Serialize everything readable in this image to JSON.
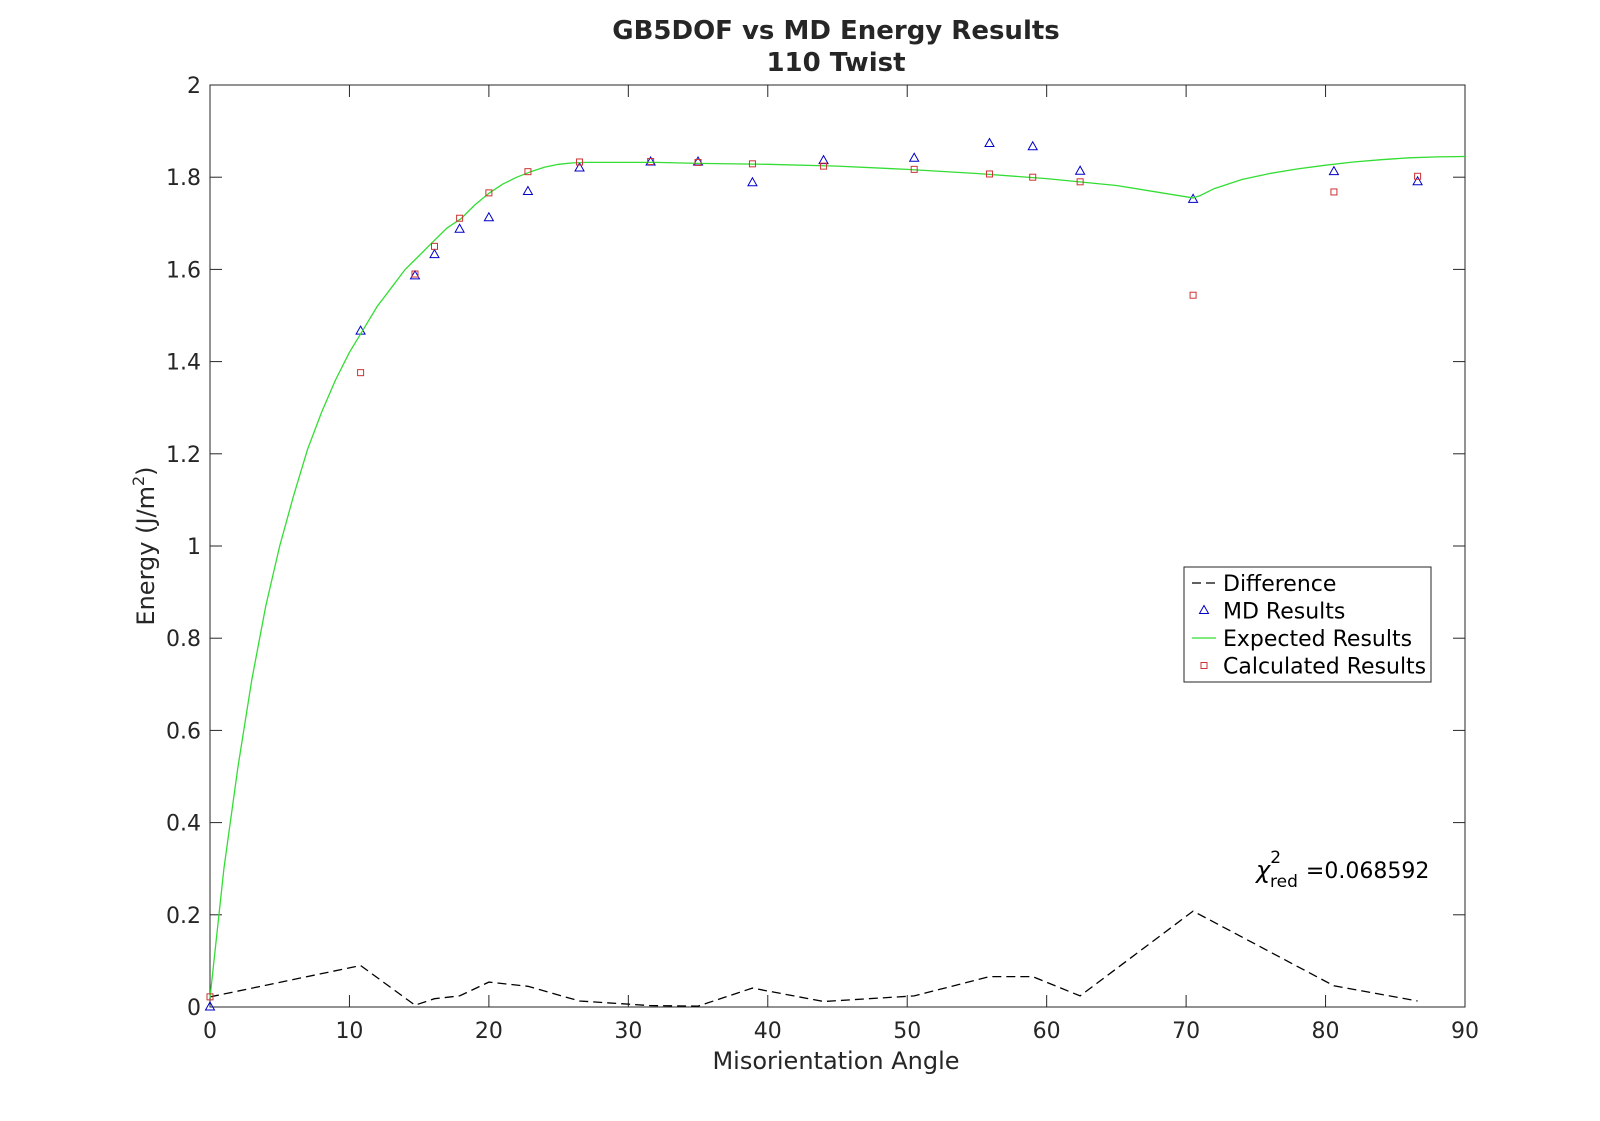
{
  "chart_data": {
    "type": "line",
    "title": "GB5DOF vs MD Energy Results",
    "subtitle": "110 Twist",
    "xlabel": "Misorientation Angle",
    "ylabel": "Energy (J/m",
    "ylabel_sup": "2",
    "ylabel_close": ")",
    "xlim": [
      0,
      90
    ],
    "ylim": [
      0,
      2
    ],
    "xticks": [
      0,
      10,
      20,
      30,
      40,
      50,
      60,
      70,
      80,
      90
    ],
    "yticks": [
      0,
      0.2,
      0.4,
      0.6,
      0.8,
      1,
      1.2,
      1.4,
      1.6,
      1.8,
      2
    ],
    "grid": false,
    "legend_position": "center-right",
    "annotation": {
      "symbol": "χ",
      "sup": "2",
      "sub": "red",
      "text": "=0.068592"
    },
    "series": [
      {
        "name": "Difference",
        "style": "dashed-line",
        "color": "#000000",
        "x": [
          0,
          10.8,
          14.7,
          16.1,
          17.9,
          20.0,
          22.8,
          26.5,
          31.6,
          35.0,
          38.9,
          44.0,
          50.5,
          55.9,
          59.0,
          62.4,
          70.5,
          80.6,
          86.6
        ],
        "y": [
          0.022,
          0.09,
          0.004,
          0.018,
          0.024,
          0.054,
          0.045,
          0.013,
          0.003,
          0.002,
          0.041,
          0.012,
          0.024,
          0.066,
          0.066,
          0.024,
          0.208,
          0.046,
          0.013
        ]
      },
      {
        "name": "MD Results",
        "style": "triangle-markers",
        "color": "#0000c8",
        "x": [
          0,
          10.8,
          14.7,
          16.1,
          17.9,
          20.0,
          22.8,
          26.5,
          31.6,
          35.0,
          38.9,
          44.0,
          50.5,
          55.9,
          59.0,
          62.4,
          70.5,
          80.6,
          86.6
        ],
        "y": [
          0.0,
          1.466,
          1.586,
          1.632,
          1.687,
          1.712,
          1.769,
          1.82,
          1.833,
          1.833,
          1.788,
          1.836,
          1.841,
          1.873,
          1.866,
          1.813,
          1.752,
          1.812,
          1.79
        ]
      },
      {
        "name": "Expected Results",
        "style": "solid-line",
        "color": "#33dd33",
        "x": [
          0,
          1,
          2,
          3,
          4,
          5,
          6,
          7,
          8,
          9,
          10,
          11,
          12,
          13,
          14,
          15,
          16,
          17,
          18,
          19,
          20,
          21,
          22,
          23,
          24,
          25,
          26,
          27,
          28,
          30,
          32,
          35,
          40,
          45,
          50,
          55,
          60,
          65,
          70.5,
          71,
          72,
          74,
          76,
          78,
          80,
          82,
          84,
          86,
          88,
          90
        ],
        "y": [
          0.02,
          0.3,
          0.52,
          0.71,
          0.87,
          1.0,
          1.11,
          1.21,
          1.29,
          1.36,
          1.42,
          1.47,
          1.52,
          1.56,
          1.6,
          1.63,
          1.66,
          1.69,
          1.71,
          1.74,
          1.765,
          1.785,
          1.8,
          1.812,
          1.822,
          1.828,
          1.831,
          1.832,
          1.832,
          1.832,
          1.832,
          1.83,
          1.828,
          1.824,
          1.817,
          1.808,
          1.797,
          1.782,
          1.755,
          1.76,
          1.775,
          1.795,
          1.808,
          1.818,
          1.826,
          1.833,
          1.838,
          1.842,
          1.844,
          1.845
        ]
      },
      {
        "name": "Calculated Results",
        "style": "square-markers",
        "color": "#cc3333",
        "x": [
          0,
          10.8,
          14.7,
          16.1,
          17.9,
          20.0,
          22.8,
          26.5,
          31.6,
          35.0,
          38.9,
          44.0,
          50.5,
          55.9,
          59.0,
          62.4,
          70.5,
          80.6,
          86.6
        ],
        "y": [
          0.022,
          1.376,
          1.59,
          1.65,
          1.711,
          1.766,
          1.812,
          1.833,
          1.834,
          1.832,
          1.829,
          1.824,
          1.817,
          1.807,
          1.8,
          1.79,
          1.544,
          1.768,
          1.802
        ]
      }
    ]
  }
}
